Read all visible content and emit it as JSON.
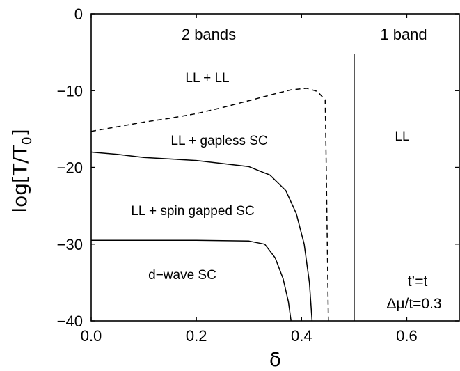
{
  "chart_data": {
    "type": "line",
    "title": "",
    "xlabel": "δ",
    "ylabel": "log[T/T",
    "ylabel_sub": "0",
    "ylabel_close": "]",
    "xlim": [
      0.0,
      0.7
    ],
    "ylim": [
      -40,
      0
    ],
    "x_ticks": [
      {
        "value": 0.0,
        "label": "0.0"
      },
      {
        "value": 0.2,
        "label": "0.2"
      },
      {
        "value": 0.4,
        "label": "0.4"
      },
      {
        "value": 0.6,
        "label": "0.6"
      }
    ],
    "y_ticks": [
      {
        "value": 0,
        "label": "0"
      },
      {
        "value": -10,
        "label": "−10"
      },
      {
        "value": -20,
        "label": "−20"
      },
      {
        "value": -30,
        "label": "−30"
      },
      {
        "value": -40,
        "label": "−40"
      }
    ],
    "series": [
      {
        "style": "dashed",
        "points": [
          [
            0.0,
            -15.3
          ],
          [
            0.05,
            -14.7
          ],
          [
            0.1,
            -14.1
          ],
          [
            0.15,
            -13.6
          ],
          [
            0.2,
            -13.0
          ],
          [
            0.25,
            -12.2
          ],
          [
            0.3,
            -11.3
          ],
          [
            0.35,
            -10.4
          ],
          [
            0.38,
            -9.9
          ],
          [
            0.41,
            -9.7
          ],
          [
            0.43,
            -10.1
          ],
          [
            0.445,
            -11.2
          ],
          [
            0.447,
            -20
          ],
          [
            0.449,
            -30
          ],
          [
            0.451,
            -40
          ]
        ]
      },
      {
        "style": "solid",
        "points": [
          [
            0.0,
            -18.0
          ],
          [
            0.05,
            -18.3
          ],
          [
            0.1,
            -18.7
          ],
          [
            0.2,
            -19.1
          ],
          [
            0.3,
            -19.9
          ],
          [
            0.34,
            -21.0
          ],
          [
            0.37,
            -23.0
          ],
          [
            0.39,
            -26.0
          ],
          [
            0.405,
            -30.0
          ],
          [
            0.415,
            -35.0
          ],
          [
            0.42,
            -40.0
          ]
        ]
      },
      {
        "style": "solid",
        "points": [
          [
            0.0,
            -29.5
          ],
          [
            0.1,
            -29.5
          ],
          [
            0.2,
            -29.5
          ],
          [
            0.3,
            -29.6
          ],
          [
            0.33,
            -30.0
          ],
          [
            0.35,
            -31.8
          ],
          [
            0.365,
            -34.5
          ],
          [
            0.375,
            -37.5
          ],
          [
            0.38,
            -40.0
          ]
        ]
      },
      {
        "style": "solid",
        "points": [
          [
            0.5,
            -5.2
          ],
          [
            0.5,
            -40.0
          ]
        ]
      }
    ],
    "annotations": {
      "two_bands": "2 bands",
      "one_band": "1 band",
      "ll_ll": "LL + LL",
      "ll_gapless": "LL + gapless SC",
      "ll_spin": "LL + spin gapped SC",
      "dwave": "d−wave SC",
      "ll": "LL",
      "tprime": "t’=t",
      "dmu": "Δμ/t=0.3"
    },
    "grid": false,
    "legend": "none"
  }
}
